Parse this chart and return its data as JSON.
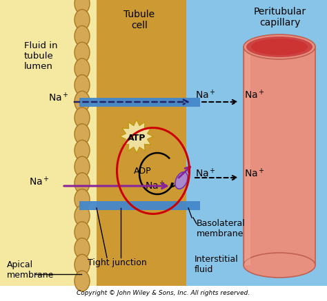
{
  "bg_left_color": "#f5e8a0",
  "bg_mid_color": "#c8973a",
  "bg_right_color": "#88c4e8",
  "tubule_cell_color": "#cc9933",
  "tubule_cell_dark": "#aa7722",
  "microvillus_fill": "#d4a855",
  "microvillus_edge": "#aa7722",
  "capillary_color": "#e89080",
  "capillary_dark": "#c06050",
  "capillary_inner": "#cc4444",
  "capillary_inner_light": "#e0b0a0",
  "blue_channel_color": "#4488cc",
  "arrow_black_color": "#111111",
  "arrow_purple_color": "#882299",
  "red_circle_color": "#cc0000",
  "atp_fill": "#f0e0a0",
  "atp_edge": "#bb9900",
  "pump_fill": "#aa88cc",
  "pump_edge": "#7733aa",
  "text_title_tubule": "Tubule\ncell",
  "text_title_peritubular": "Peritubular\ncapillary",
  "text_fluid_lumen": "Fluid in\ntubule\nlumen",
  "text_apical": "Apical\nmembrane",
  "text_tight_junction": "Tight junction",
  "text_basolateral": "Basolateral\nmembrane",
  "text_interstitial": "Interstitial\nfluid",
  "text_atp": "ATP",
  "text_adp": "ADP",
  "copyright": "Copyright © John Wiley & Sons, Inc. All rights reserved.",
  "figsize": [
    4.74,
    4.37
  ],
  "dpi": 100
}
